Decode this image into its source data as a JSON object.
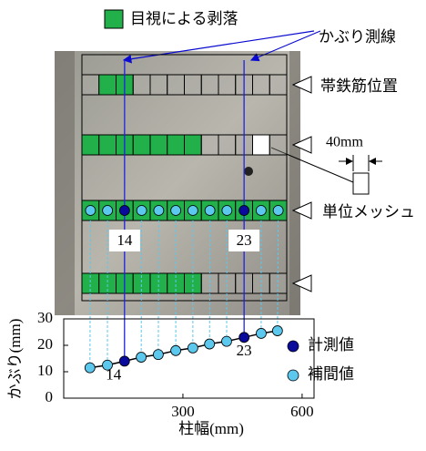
{
  "legend_spalling": "目視による剥落",
  "cover_line_label": "かぶり測線",
  "rebar_label": "帯鉄筋位置",
  "mesh_label": "単位メッシュ",
  "mesh_size_label": "40mm",
  "chart_data": {
    "type": "line",
    "x_label": "柱幅(mm)",
    "y_label": "かぶり(mm)",
    "x": [
      66,
      110,
      153,
      195,
      238,
      282,
      325,
      367,
      410,
      454,
      497,
      538
    ],
    "series": [
      {
        "name": "計測値",
        "color": "#0a0a9c",
        "values": [
          null,
          null,
          14,
          null,
          null,
          null,
          null,
          null,
          null,
          23,
          null,
          null
        ]
      },
      {
        "name": "補間値",
        "color": "#5cc8ee",
        "values": [
          11.5,
          12.5,
          null,
          15.5,
          16.5,
          18,
          19,
          20.5,
          21.5,
          null,
          24.5,
          25.5
        ]
      }
    ],
    "line_color": "#000000",
    "xlim": [
      0,
      630
    ],
    "xticks": [
      300,
      600
    ],
    "ylim": [
      0,
      30
    ],
    "yticks": [
      0,
      10,
      20,
      30
    ]
  }
}
